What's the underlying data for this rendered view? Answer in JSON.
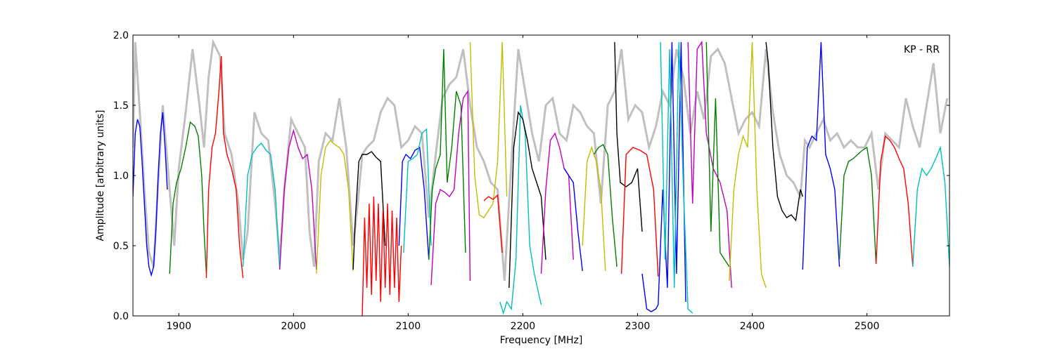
{
  "chart_data": {
    "type": "line",
    "annotation": "KP - RR",
    "xlabel": "Frequency [MHz]",
    "ylabel": "Amplitude [arbitrary units]",
    "xlim": [
      1860,
      2572
    ],
    "ylim": [
      0,
      2.0
    ],
    "xticks": [
      1900,
      2000,
      2100,
      2200,
      2300,
      2400,
      2500
    ],
    "yticks": [
      "0.0",
      "0.5",
      "1.0",
      "1.5",
      "2.0"
    ],
    "grid": false,
    "legend": "none",
    "reference_color": "#c0c0c0",
    "band_colors": [
      "#0000ff",
      "#008000",
      "#ff0000",
      "#00bfbf",
      "#bf00bf",
      "#bfbf00",
      "#000000"
    ],
    "reference_series": {
      "x": [
        1860,
        1862,
        1866,
        1870,
        1874,
        1878,
        1882,
        1886,
        1890,
        1892,
        1896,
        1900,
        1906,
        1912,
        1918,
        1922,
        1926,
        1930,
        1936,
        1940,
        1946,
        1952,
        1956,
        1960,
        1966,
        1972,
        1978,
        1984,
        1988,
        1992,
        1998,
        2004,
        2010,
        2014,
        2018,
        2022,
        2028,
        2034,
        2040,
        2046,
        2052,
        2056,
        2060,
        2064,
        2070,
        2076,
        2082,
        2088,
        2094,
        2100,
        2106,
        2112,
        2118,
        2124,
        2130,
        2136,
        2142,
        2148,
        2154,
        2160,
        2166,
        2172,
        2178,
        2184,
        2190,
        2196,
        2202,
        2208,
        2214,
        2220,
        2226,
        2232,
        2238,
        2244,
        2250,
        2256,
        2262,
        2268,
        2274,
        2280,
        2286,
        2292,
        2298,
        2304,
        2310,
        2316,
        2322,
        2328,
        2334,
        2340,
        2346,
        2352,
        2358,
        2364,
        2370,
        2376,
        2382,
        2388,
        2394,
        2400,
        2406,
        2412,
        2418,
        2424,
        2430,
        2436,
        2442,
        2446,
        2450,
        2456,
        2462,
        2468,
        2474,
        2480,
        2486,
        2492,
        2498,
        2504,
        2510,
        2516,
        2522,
        2528,
        2534,
        2540,
        2546,
        2552,
        2558,
        2564,
        2570
      ],
      "y": [
        1.2,
        1.95,
        1.45,
        0.9,
        0.45,
        0.35,
        0.95,
        1.5,
        1.1,
        0.9,
        0.5,
        1.05,
        1.45,
        1.9,
        1.5,
        1.2,
        1.7,
        1.95,
        1.85,
        1.3,
        1.15,
        0.8,
        0.4,
        0.6,
        1.45,
        1.3,
        1.25,
        0.8,
        0.4,
        0.9,
        1.4,
        1.3,
        1.2,
        0.6,
        0.35,
        1.1,
        1.3,
        1.25,
        1.55,
        1.2,
        0.5,
        0.8,
        1.15,
        1.2,
        1.25,
        1.45,
        1.55,
        1.5,
        1.2,
        1.25,
        1.35,
        1.3,
        0.7,
        1.15,
        1.55,
        1.65,
        1.7,
        1.9,
        1.5,
        1.2,
        1.1,
        0.95,
        0.9,
        0.25,
        1.1,
        1.9,
        1.6,
        1.3,
        1.1,
        1.5,
        1.55,
        1.3,
        1.25,
        1.5,
        1.45,
        1.35,
        1.3,
        0.8,
        1.5,
        1.6,
        1.9,
        1.4,
        1.5,
        1.45,
        1.2,
        1.35,
        1.6,
        1.5,
        1.9,
        1.7,
        1.3,
        1.6,
        1.4,
        1.85,
        1.9,
        1.8,
        1.55,
        1.3,
        1.4,
        1.45,
        1.35,
        1.9,
        1.45,
        1.15,
        1.0,
        0.95,
        0.85,
        1.25,
        1.2,
        1.3,
        1.4,
        1.25,
        1.3,
        1.2,
        1.25,
        1.2,
        1.2,
        1.3,
        0.9,
        1.3,
        1.25,
        1.2,
        1.55,
        1.35,
        1.2,
        1.5,
        1.8,
        1.3,
        1.55
      ]
    },
    "series": [
      {
        "color_index": 0,
        "x": [
          1860,
          1862,
          1864,
          1866,
          1868,
          1870,
          1872,
          1874,
          1876,
          1878,
          1880,
          1882,
          1884,
          1886,
          1888,
          1890
        ],
        "y": [
          0.85,
          1.3,
          1.4,
          1.35,
          1.1,
          0.8,
          0.5,
          0.35,
          0.29,
          0.35,
          0.6,
          1.0,
          1.3,
          1.45,
          1.2,
          0.9
        ]
      },
      {
        "color_index": 1,
        "x": [
          1892,
          1895,
          1898,
          1902,
          1906,
          1910,
          1914,
          1917,
          1920,
          1922,
          1924
        ],
        "y": [
          0.3,
          0.8,
          0.95,
          1.05,
          1.2,
          1.38,
          1.35,
          1.28,
          1.0,
          0.6,
          0.3
        ]
      },
      {
        "color_index": 2,
        "x": [
          1924,
          1926,
          1929,
          1932,
          1935,
          1937,
          1939,
          1942,
          1946,
          1950,
          1953,
          1956
        ],
        "y": [
          0.27,
          0.9,
          1.2,
          1.3,
          1.6,
          1.85,
          1.3,
          1.15,
          1.05,
          0.9,
          0.5,
          0.27
        ]
      },
      {
        "color_index": 3,
        "x": [
          1956,
          1960,
          1964,
          1968,
          1972,
          1976,
          1980,
          1984,
          1988
        ],
        "y": [
          0.35,
          1.0,
          1.15,
          1.2,
          1.23,
          1.18,
          1.15,
          0.9,
          0.33
        ]
      },
      {
        "color_index": 4,
        "x": [
          1988,
          1992,
          1996,
          2000,
          2004,
          2008,
          2012,
          2016,
          2020
        ],
        "y": [
          0.33,
          0.9,
          1.2,
          1.32,
          1.2,
          1.12,
          1.15,
          0.9,
          0.33
        ]
      },
      {
        "color_index": 5,
        "x": [
          2020,
          2024,
          2028,
          2032,
          2036,
          2040,
          2044,
          2048,
          2052
        ],
        "y": [
          0.3,
          1.0,
          1.2,
          1.25,
          1.22,
          1.2,
          1.15,
          0.9,
          0.32
        ]
      },
      {
        "color_index": 6,
        "x": [
          2052,
          2054,
          2057,
          2060,
          2064,
          2068,
          2072,
          2076,
          2080
        ],
        "y": [
          0.33,
          0.7,
          1.1,
          1.15,
          1.15,
          1.17,
          1.13,
          1.1,
          0.5
        ]
      },
      {
        "color_index": 2,
        "x": [
          2060,
          2062,
          2064,
          2066,
          2068,
          2070,
          2072,
          2074,
          2076,
          2078,
          2080,
          2082,
          2084,
          2086,
          2088,
          2090,
          2092,
          2094
        ],
        "y": [
          0.0,
          0.7,
          0.2,
          0.8,
          0.15,
          0.85,
          0.25,
          0.8,
          0.1,
          0.75,
          0.2,
          0.8,
          0.15,
          0.75,
          0.2,
          0.7,
          0.1,
          0.5
        ]
      },
      {
        "color_index": 0,
        "x": [
          2092,
          2095,
          2098,
          2102,
          2106,
          2110,
          2114,
          2118
        ],
        "y": [
          0.5,
          1.1,
          1.15,
          1.12,
          1.18,
          1.2,
          0.9,
          0.4
        ]
      },
      {
        "color_index": 3,
        "x": [
          2096,
          2100,
          2104,
          2108,
          2112,
          2116,
          2120
        ],
        "y": [
          0.45,
          1.1,
          1.12,
          1.15,
          1.3,
          1.33,
          0.5
        ]
      },
      {
        "color_index": 1,
        "x": [
          2118,
          2121,
          2124,
          2128,
          2131,
          2134,
          2138,
          2142,
          2146,
          2150
        ],
        "y": [
          0.4,
          0.9,
          1.05,
          1.15,
          1.9,
          0.95,
          1.2,
          1.6,
          1.5,
          0.45
        ]
      },
      {
        "color_index": 4,
        "x": [
          2120,
          2124,
          2128,
          2132,
          2136,
          2140,
          2144,
          2148,
          2152,
          2154
        ],
        "y": [
          0.22,
          0.8,
          0.9,
          0.88,
          0.85,
          0.9,
          1.3,
          1.55,
          1.6,
          0.25
        ]
      },
      {
        "color_index": 5,
        "x": [
          2154,
          2158,
          2162,
          2166,
          2170,
          2174,
          2178,
          2182,
          2186
        ],
        "y": [
          1.95,
          1.0,
          0.72,
          0.7,
          0.75,
          0.8,
          1.1,
          1.95,
          0.85
        ]
      },
      {
        "color_index": 2,
        "x": [
          2166,
          2170,
          2174,
          2178,
          2182
        ],
        "y": [
          0.82,
          0.85,
          0.83,
          0.86,
          0.45
        ]
      },
      {
        "color_index": 3,
        "x": [
          2180,
          2183,
          2186,
          2190,
          2194,
          2198,
          2202,
          2206,
          2210,
          2214,
          2216
        ],
        "y": [
          0.1,
          0.02,
          0.1,
          0.05,
          0.4,
          1.5,
          1.3,
          0.5,
          0.3,
          0.15,
          0.08
        ]
      },
      {
        "color_index": 6,
        "x": [
          2188,
          2192,
          2196,
          2200,
          2204,
          2208,
          2212,
          2216,
          2220
        ],
        "y": [
          0.2,
          1.2,
          1.45,
          1.4,
          1.25,
          1.05,
          0.95,
          0.85,
          0.4
        ]
      },
      {
        "color_index": 4,
        "x": [
          2216,
          2220,
          2224,
          2228,
          2232,
          2236,
          2240,
          2244
        ],
        "y": [
          0.3,
          0.9,
          1.25,
          1.3,
          1.2,
          1.05,
          1.0,
          0.4
        ]
      },
      {
        "color_index": 0,
        "x": [
          2236,
          2240,
          2244,
          2248,
          2252
        ],
        "y": [
          1.05,
          1.0,
          0.95,
          0.6,
          0.32
        ]
      },
      {
        "color_index": 5,
        "x": [
          2252,
          2256,
          2260,
          2264,
          2268,
          2272
        ],
        "y": [
          0.5,
          1.1,
          1.2,
          1.1,
          0.9,
          0.32
        ]
      },
      {
        "color_index": 1,
        "x": [
          2262,
          2266,
          2270,
          2274,
          2278,
          2282
        ],
        "y": [
          1.15,
          1.2,
          1.22,
          1.15,
          0.7,
          0.35
        ]
      },
      {
        "color_index": 6,
        "x": [
          2280,
          2282,
          2285,
          2290,
          2295,
          2300,
          2304
        ],
        "y": [
          1.95,
          1.3,
          0.95,
          0.92,
          0.95,
          1.05,
          0.6
        ]
      },
      {
        "color_index": 2,
        "x": [
          2286,
          2290,
          2296,
          2302,
          2308,
          2314,
          2318
        ],
        "y": [
          0.3,
          1.15,
          1.2,
          1.18,
          1.15,
          0.9,
          0.28
        ]
      },
      {
        "color_index": 0,
        "x": [
          2304,
          2308,
          2312,
          2316,
          2318,
          2322,
          2326,
          2330,
          2334,
          2338,
          2342
        ],
        "y": [
          0.3,
          0.05,
          0.03,
          0.05,
          0.08,
          0.9,
          0.2,
          1.95,
          0.3,
          1.95,
          0.1
        ]
      },
      {
        "color_index": 3,
        "x": [
          2320,
          2324,
          2328,
          2332,
          2336,
          2340,
          2344,
          2348
        ],
        "y": [
          1.95,
          0.4,
          1.9,
          0.2,
          1.95,
          0.9,
          0.05,
          0.02
        ]
      },
      {
        "color_index": 4,
        "x": [
          2344,
          2348,
          2352,
          2356,
          2360,
          2366,
          2372,
          2378,
          2382
        ],
        "y": [
          1.95,
          0.8,
          1.9,
          1.95,
          1.3,
          1.05,
          0.95,
          0.75,
          0.2
        ]
      },
      {
        "color_index": 1,
        "x": [
          2360,
          2364,
          2368,
          2372,
          2376,
          2380
        ],
        "y": [
          1.95,
          0.6,
          1.55,
          0.45,
          0.4,
          0.35
        ]
      },
      {
        "color_index": 5,
        "x": [
          2380,
          2384,
          2388,
          2392,
          2396,
          2400,
          2404,
          2408,
          2412
        ],
        "y": [
          0.25,
          0.9,
          1.15,
          1.28,
          1.2,
          1.95,
          0.9,
          0.3,
          0.2
        ]
      },
      {
        "color_index": 6,
        "x": [
          2412,
          2414,
          2418,
          2422,
          2426,
          2430,
          2434,
          2438,
          2442,
          2444
        ],
        "y": [
          1.95,
          1.8,
          1.2,
          0.85,
          0.75,
          0.7,
          0.72,
          0.68,
          0.9,
          0.85
        ]
      },
      {
        "color_index": 0,
        "x": [
          2444,
          2448,
          2452,
          2456,
          2460,
          2464,
          2468,
          2472,
          2476
        ],
        "y": [
          0.33,
          1.2,
          1.28,
          1.25,
          1.95,
          1.15,
          1.05,
          0.9,
          0.35
        ]
      },
      {
        "color_index": 1,
        "x": [
          2476,
          2480,
          2484,
          2488,
          2492,
          2496,
          2500,
          2504,
          2508
        ],
        "y": [
          0.4,
          1.0,
          1.1,
          1.12,
          1.15,
          1.18,
          1.2,
          1.0,
          0.37
        ]
      },
      {
        "color_index": 2,
        "x": [
          2508,
          2512,
          2516,
          2520,
          2524,
          2528,
          2532,
          2536,
          2540
        ],
        "y": [
          0.37,
          1.1,
          1.28,
          1.25,
          1.2,
          1.12,
          1.05,
          0.8,
          0.35
        ]
      },
      {
        "color_index": 3,
        "x": [
          2540,
          2544,
          2548,
          2552,
          2556,
          2560,
          2564,
          2568,
          2572
        ],
        "y": [
          0.35,
          0.9,
          1.05,
          1.0,
          1.05,
          1.12,
          1.2,
          0.95,
          0.35
        ]
      }
    ]
  }
}
